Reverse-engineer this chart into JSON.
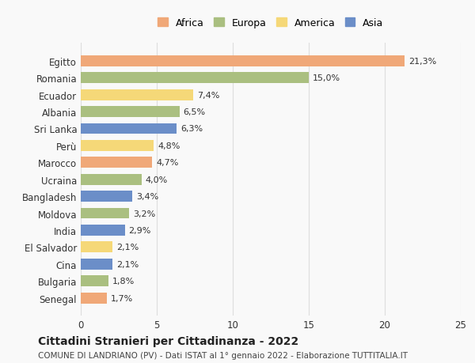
{
  "countries": [
    "Egitto",
    "Romania",
    "Ecuador",
    "Albania",
    "Sri Lanka",
    "Perù",
    "Marocco",
    "Ucraina",
    "Bangladesh",
    "Moldova",
    "India",
    "El Salvador",
    "Cina",
    "Bulgaria",
    "Senegal"
  ],
  "values": [
    21.3,
    15.0,
    7.4,
    6.5,
    6.3,
    4.8,
    4.7,
    4.0,
    3.4,
    3.2,
    2.9,
    2.1,
    2.1,
    1.8,
    1.7
  ],
  "labels": [
    "21,3%",
    "15,0%",
    "7,4%",
    "6,5%",
    "6,3%",
    "4,8%",
    "4,7%",
    "4,0%",
    "3,4%",
    "3,2%",
    "2,9%",
    "2,1%",
    "2,1%",
    "1,8%",
    "1,7%"
  ],
  "continents": [
    "Africa",
    "Europa",
    "America",
    "Europa",
    "Asia",
    "America",
    "Africa",
    "Europa",
    "Asia",
    "Europa",
    "Asia",
    "America",
    "Asia",
    "Europa",
    "Africa"
  ],
  "colors": {
    "Africa": "#F0A878",
    "Europa": "#AABF80",
    "America": "#F5D878",
    "Asia": "#6B8EC8"
  },
  "legend_order": [
    "Africa",
    "Europa",
    "America",
    "Asia"
  ],
  "xlim": [
    0,
    25
  ],
  "xticks": [
    0,
    5,
    10,
    15,
    20,
    25
  ],
  "title": "Cittadini Stranieri per Cittadinanza - 2022",
  "subtitle": "COMUNE DI LANDRIANO (PV) - Dati ISTAT al 1° gennaio 2022 - Elaborazione TUTTITALIA.IT",
  "bg_color": "#f9f9f9",
  "grid_color": "#dddddd"
}
